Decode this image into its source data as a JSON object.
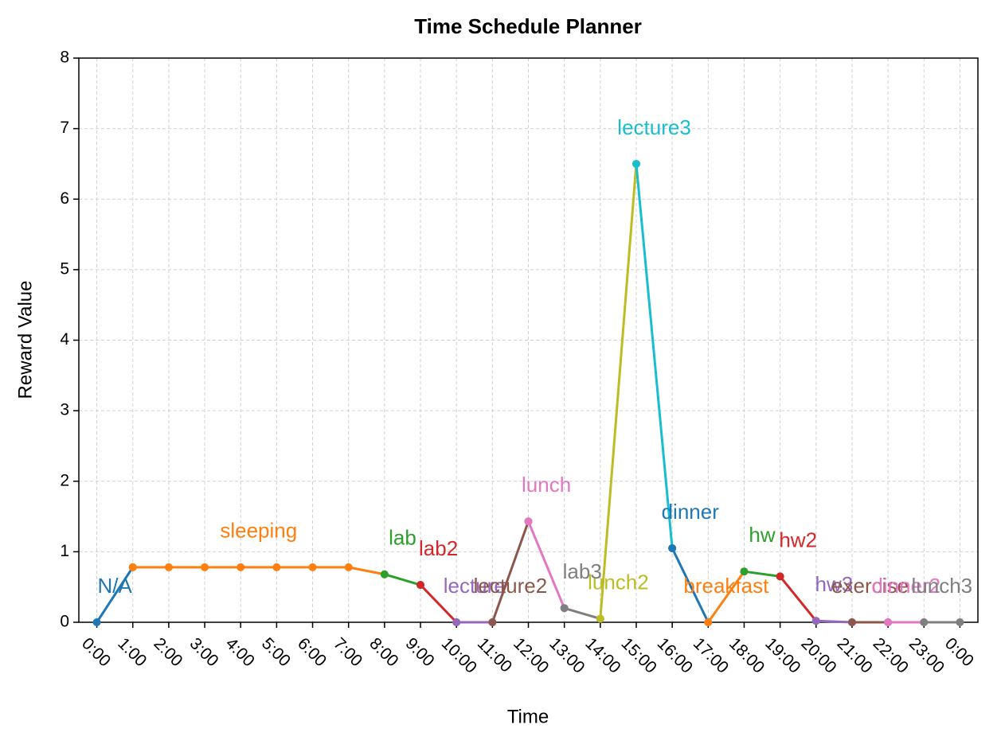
{
  "chart_data": {
    "type": "line",
    "title": "Time Schedule Planner",
    "x_label": "Time",
    "y_label": "Reward Value",
    "categories": [
      "0:00",
      "1:00",
      "2:00",
      "3:00",
      "4:00",
      "5:00",
      "6:00",
      "7:00",
      "8:00",
      "9:00",
      "10:00",
      "11:00",
      "12:00",
      "13:00",
      "14:00",
      "15:00",
      "16:00",
      "17:00",
      "18:00",
      "19:00",
      "20:00",
      "21:00",
      "22:00",
      "23:00",
      "0:00"
    ],
    "ylim": [
      0,
      8
    ],
    "yticks": [
      0,
      1,
      2,
      3,
      4,
      5,
      6,
      7,
      8
    ],
    "grid": true,
    "series": [
      {
        "name": "N/A",
        "color": "#1f77b4",
        "values": [
          0,
          0.78,
          null,
          null,
          null,
          null,
          null,
          null,
          null,
          null,
          null,
          null,
          null,
          null,
          null,
          null,
          null,
          null,
          null,
          null,
          null,
          null,
          null,
          null,
          null
        ]
      },
      {
        "name": "sleeping",
        "color": "#ff7f0e",
        "values": [
          null,
          0.78,
          0.78,
          0.78,
          0.78,
          0.78,
          0.78,
          0.78,
          0.68,
          null,
          null,
          null,
          null,
          null,
          null,
          null,
          null,
          null,
          null,
          null,
          null,
          null,
          null,
          null,
          null
        ]
      },
      {
        "name": "lab",
        "color": "#2ca02c",
        "values": [
          null,
          null,
          null,
          null,
          null,
          null,
          null,
          null,
          0.68,
          0.53,
          null,
          null,
          null,
          null,
          null,
          null,
          null,
          null,
          null,
          null,
          null,
          null,
          null,
          null,
          null
        ]
      },
      {
        "name": "lab2",
        "color": "#d62728",
        "values": [
          null,
          null,
          null,
          null,
          null,
          null,
          null,
          null,
          null,
          0.53,
          0,
          null,
          null,
          null,
          null,
          null,
          null,
          null,
          null,
          null,
          null,
          null,
          null,
          null,
          null
        ]
      },
      {
        "name": "lecture",
        "color": "#9467bd",
        "values": [
          null,
          null,
          null,
          null,
          null,
          null,
          null,
          null,
          null,
          null,
          0,
          0,
          null,
          null,
          null,
          null,
          null,
          null,
          null,
          null,
          null,
          null,
          null,
          null,
          null
        ]
      },
      {
        "name": "lecture2",
        "color": "#8c564b",
        "values": [
          null,
          null,
          null,
          null,
          null,
          null,
          null,
          null,
          null,
          null,
          null,
          0,
          1.43,
          null,
          null,
          null,
          null,
          null,
          null,
          null,
          null,
          null,
          null,
          null,
          null
        ]
      },
      {
        "name": "lunch",
        "color": "#e377c2",
        "values": [
          null,
          null,
          null,
          null,
          null,
          null,
          null,
          null,
          null,
          null,
          null,
          null,
          1.43,
          0.2,
          null,
          null,
          null,
          null,
          null,
          null,
          null,
          null,
          null,
          null,
          null
        ]
      },
      {
        "name": "lab3",
        "color": "#7f7f7f",
        "values": [
          null,
          null,
          null,
          null,
          null,
          null,
          null,
          null,
          null,
          null,
          null,
          null,
          null,
          0.2,
          0.05,
          null,
          null,
          null,
          null,
          null,
          null,
          null,
          null,
          null,
          null
        ]
      },
      {
        "name": "lunch2",
        "color": "#bcbd22",
        "values": [
          null,
          null,
          null,
          null,
          null,
          null,
          null,
          null,
          null,
          null,
          null,
          null,
          null,
          null,
          0.05,
          6.5,
          null,
          null,
          null,
          null,
          null,
          null,
          null,
          null,
          null
        ]
      },
      {
        "name": "lecture3",
        "color": "#17becf",
        "values": [
          null,
          null,
          null,
          null,
          null,
          null,
          null,
          null,
          null,
          null,
          null,
          null,
          null,
          null,
          null,
          6.5,
          1.05,
          null,
          null,
          null,
          null,
          null,
          null,
          null,
          null
        ]
      },
      {
        "name": "dinner",
        "color": "#1f77b4",
        "values": [
          null,
          null,
          null,
          null,
          null,
          null,
          null,
          null,
          null,
          null,
          null,
          null,
          null,
          null,
          null,
          null,
          1.05,
          0,
          null,
          null,
          null,
          null,
          null,
          null,
          null
        ]
      },
      {
        "name": "breakfast",
        "color": "#ff7f0e",
        "values": [
          null,
          null,
          null,
          null,
          null,
          null,
          null,
          null,
          null,
          null,
          null,
          null,
          null,
          null,
          null,
          null,
          null,
          0,
          0.72,
          null,
          null,
          null,
          null,
          null,
          null
        ]
      },
      {
        "name": "hw",
        "color": "#2ca02c",
        "values": [
          null,
          null,
          null,
          null,
          null,
          null,
          null,
          null,
          null,
          null,
          null,
          null,
          null,
          null,
          null,
          null,
          null,
          null,
          0.72,
          0.65,
          null,
          null,
          null,
          null,
          null
        ]
      },
      {
        "name": "hw2",
        "color": "#d62728",
        "values": [
          null,
          null,
          null,
          null,
          null,
          null,
          null,
          null,
          null,
          null,
          null,
          null,
          null,
          null,
          null,
          null,
          null,
          null,
          null,
          0.65,
          0.02,
          null,
          null,
          null,
          null
        ]
      },
      {
        "name": "hw3",
        "color": "#9467bd",
        "values": [
          null,
          null,
          null,
          null,
          null,
          null,
          null,
          null,
          null,
          null,
          null,
          null,
          null,
          null,
          null,
          null,
          null,
          null,
          null,
          null,
          0.02,
          0,
          null,
          null,
          null
        ]
      },
      {
        "name": "exercise",
        "color": "#8c564b",
        "values": [
          null,
          null,
          null,
          null,
          null,
          null,
          null,
          null,
          null,
          null,
          null,
          null,
          null,
          null,
          null,
          null,
          null,
          null,
          null,
          null,
          null,
          0,
          0,
          null,
          null
        ]
      },
      {
        "name": "dinner2",
        "color": "#e377c2",
        "values": [
          null,
          null,
          null,
          null,
          null,
          null,
          null,
          null,
          null,
          null,
          null,
          null,
          null,
          null,
          null,
          null,
          null,
          null,
          null,
          null,
          null,
          null,
          0,
          0,
          null
        ]
      },
      {
        "name": "lunch3",
        "color": "#7f7f7f",
        "values": [
          null,
          null,
          null,
          null,
          null,
          null,
          null,
          null,
          null,
          null,
          null,
          null,
          null,
          null,
          null,
          null,
          null,
          null,
          null,
          null,
          null,
          null,
          null,
          0,
          0
        ]
      }
    ]
  }
}
